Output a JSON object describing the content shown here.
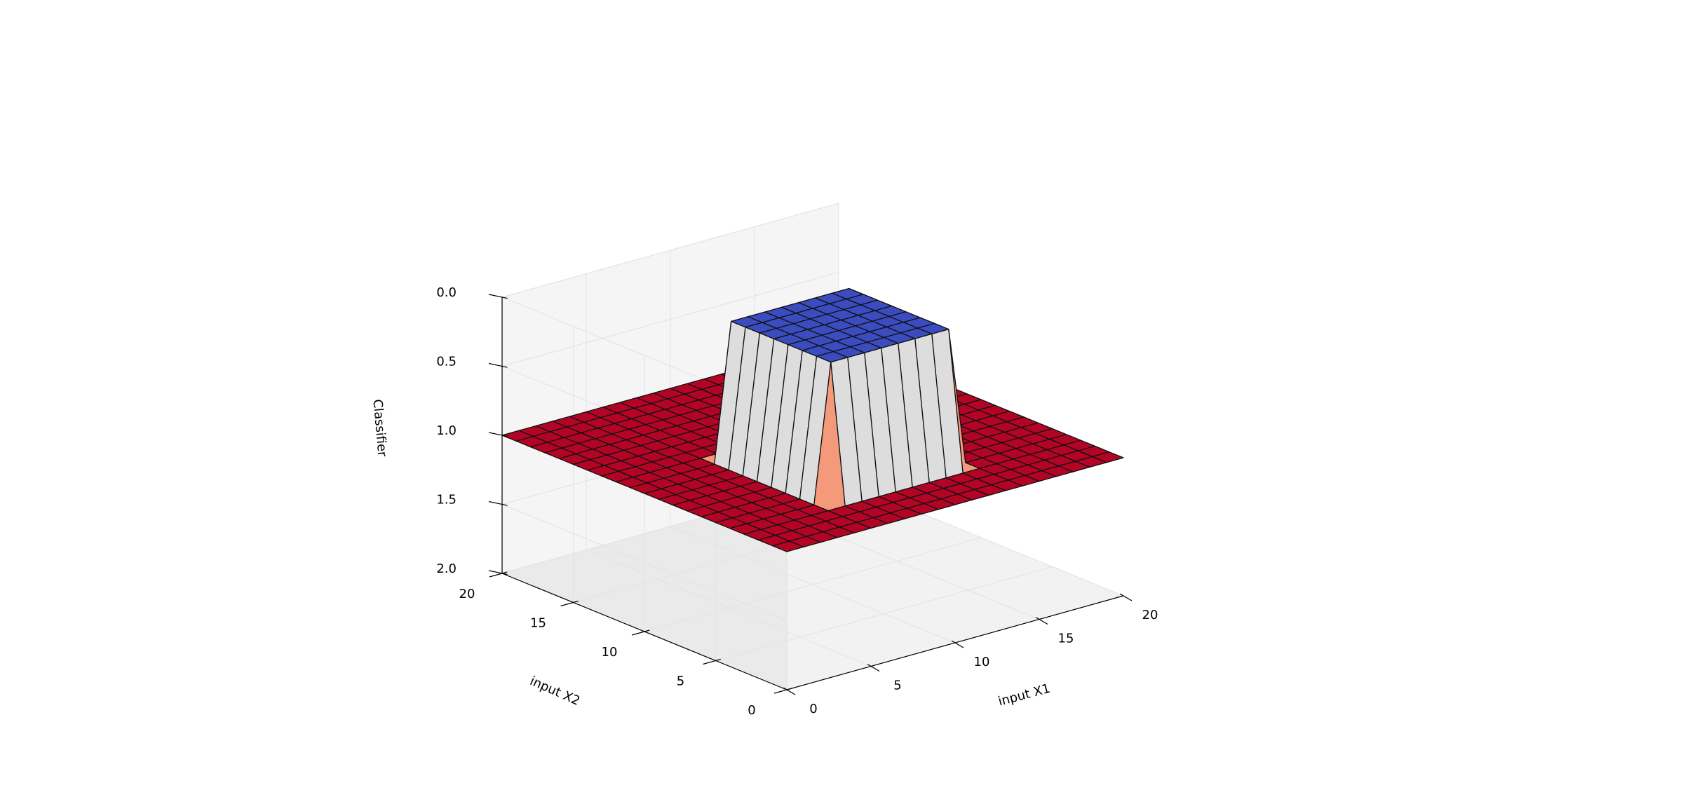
{
  "chart_data": {
    "type": "surface3d",
    "title": "",
    "xlabel": "input X1",
    "ylabel": "input X2",
    "zlabel": "Classifier",
    "xlim": [
      0,
      20
    ],
    "ylim": [
      0,
      20
    ],
    "zlim": [
      2.0,
      0.0
    ],
    "x_ticks": [
      "0",
      "5",
      "10",
      "15",
      "20"
    ],
    "y_ticks": [
      "0",
      "5",
      "10",
      "15",
      "20"
    ],
    "z_ticks": [
      "0.0",
      "0.5",
      "1.0",
      "1.5",
      "2.0"
    ],
    "grid": true,
    "colormap": "coolwarm",
    "colors": {
      "low": "#3b4cc0",
      "high": "#b40426"
    },
    "surface": {
      "x_range": [
        0,
        20
      ],
      "y_range": [
        0,
        20
      ],
      "grid_points": 21,
      "base_value": 1.0,
      "plateau_value": 0.0,
      "plateau_x_range": [
        6,
        13
      ],
      "plateau_y_range": [
        4,
        11
      ]
    }
  }
}
